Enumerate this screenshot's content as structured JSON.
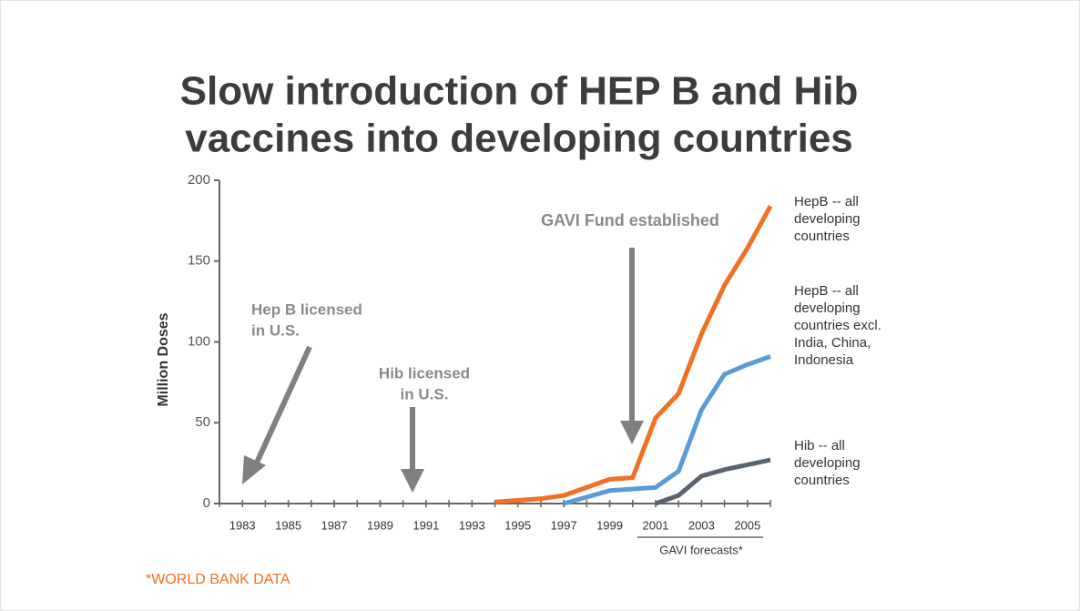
{
  "chart_data": {
    "type": "line",
    "title": [
      "Slow introduction of HEP B and Hib",
      "vaccines into developing countries"
    ],
    "y_label": "Million Doses",
    "xlim": [
      1982,
      2006
    ],
    "xticks": [
      1983,
      1985,
      1987,
      1989,
      1991,
      1993,
      1995,
      1997,
      1999,
      2001,
      2003,
      2005
    ],
    "ylim": [
      0,
      200
    ],
    "yticks": [
      0,
      50,
      100,
      150,
      200
    ],
    "series": [
      {
        "name": "HepB -- all developing countries",
        "color": "#f07024",
        "x": [
          1994,
          1995,
          1996,
          1997,
          1998,
          1999,
          2000,
          2001,
          2002,
          2003,
          2004,
          2005,
          2006
        ],
        "values": [
          1,
          2,
          3,
          5,
          10,
          15,
          16,
          53,
          68,
          105,
          135,
          158,
          184
        ]
      },
      {
        "name": "HepB -- all developing countries excl. India, China, Indonesia",
        "color": "#5b9bd5",
        "x": [
          1997,
          1998,
          1999,
          2000,
          2001,
          2002,
          2003,
          2004,
          2005,
          2006
        ],
        "values": [
          0,
          4,
          8,
          9,
          10,
          20,
          58,
          80,
          86,
          91
        ]
      },
      {
        "name": "Hib -- all developing countries",
        "color": "#5a6470",
        "x": [
          2001,
          2002,
          2003,
          2004,
          2005,
          2006
        ],
        "values": [
          0,
          5,
          17,
          21,
          24,
          27
        ]
      }
    ],
    "annotations": [
      {
        "lines": [
          "GAVI Fund established"
        ]
      },
      {
        "lines": [
          "Hep B licensed",
          "in U.S."
        ]
      },
      {
        "lines": [
          "Hib licensed",
          "in U.S."
        ]
      }
    ],
    "forecast_label": "GAVI forecasts*",
    "source": "*WORLD BANK DATA"
  }
}
